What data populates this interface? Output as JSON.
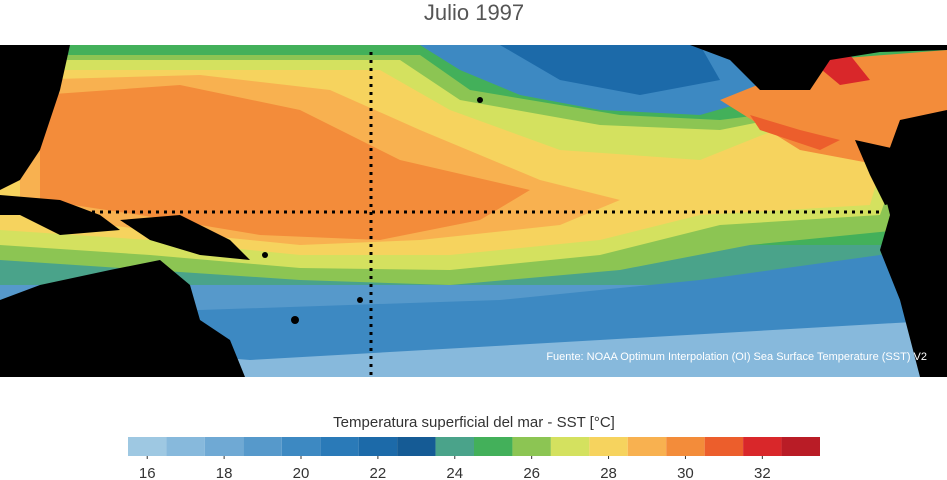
{
  "title": "Julio 1997",
  "source": "Fuente: NOAA Optimum Interpolation (OI) Sea Surface Temperature (SST) V2",
  "colorbar": {
    "label": "Temperatura superficial del mar - SST  [°C]",
    "range": [
      15.5,
      33.5
    ],
    "ticks": [
      16,
      18,
      20,
      22,
      24,
      26,
      28,
      30,
      32
    ],
    "levels": [
      16,
      17,
      18,
      19,
      20,
      21,
      22,
      23,
      24,
      25,
      26,
      27,
      28,
      29,
      30,
      31,
      32,
      33
    ],
    "colors": [
      "#9ec8e2",
      "#87b9dc",
      "#6fa9d4",
      "#5699cb",
      "#3d89c2",
      "#2a7ab8",
      "#1c6aa9",
      "#155b95",
      "#4aa38a",
      "#43b05a",
      "#8cc553",
      "#d4e15f",
      "#f6d35e",
      "#f8b150",
      "#f38c3a",
      "#ec5e2c",
      "#d9272a",
      "#b91c26"
    ]
  }
}
